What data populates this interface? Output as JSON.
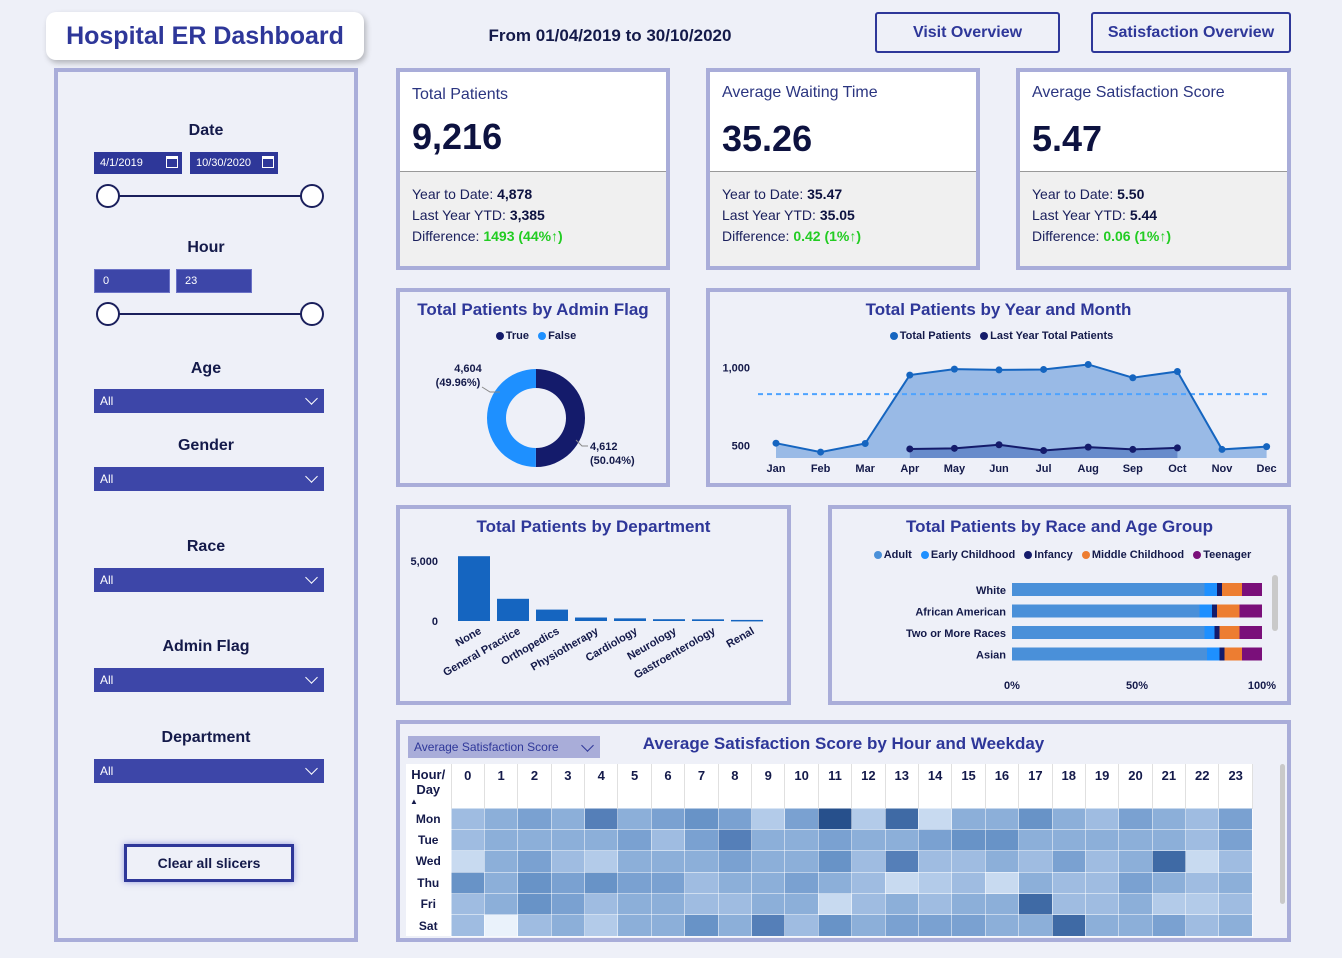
{
  "header": {
    "title": "Hospital ER Dashboard",
    "date_range": "From 01/04/2019 to 30/10/2020",
    "visit_overview_label": "Visit Overview",
    "satisfaction_overview_label": "Satisfaction Overview"
  },
  "sidebar": {
    "date": {
      "label": "Date",
      "start": "4/1/2019",
      "end": "10/30/2020"
    },
    "hour": {
      "label": "Hour",
      "min": "0",
      "max": "23"
    },
    "age": {
      "label": "Age",
      "value": "All"
    },
    "gender": {
      "label": "Gender",
      "value": "All"
    },
    "race": {
      "label": "Race",
      "value": "All"
    },
    "admin_flag": {
      "label": "Admin Flag",
      "value": "All"
    },
    "department": {
      "label": "Department",
      "value": "All"
    },
    "clear_label": "Clear all slicers"
  },
  "kpis": {
    "total_patients": {
      "label": "Total Patients",
      "value": "9,216",
      "ytd_label": "Year to Date:",
      "ytd": "4,878",
      "last_label": "Last Year YTD:",
      "last": "3,385",
      "diff_label": "Difference:",
      "diff": "1493 (44%↑)"
    },
    "avg_wait": {
      "label": "Average Waiting Time",
      "value": "35.26",
      "ytd_label": "Year to Date:",
      "ytd": "35.47",
      "last_label": "Last Year YTD:",
      "last": "35.05",
      "diff_label": "Difference:",
      "diff": "0.42 (1%↑)"
    },
    "avg_sat": {
      "label": "Average Satisfaction Score",
      "value": "5.47",
      "ytd_label": "Year to Date:",
      "ytd": "5.50",
      "last_label": "Last Year YTD:",
      "last": "5.44",
      "diff_label": "Difference:",
      "diff": "0.06 (1%↑)"
    }
  },
  "colors": {
    "accent": "#2e3799",
    "dark_navy": "#141b6b",
    "bright_blue": "#1e90ff",
    "positive": "#22cc22"
  },
  "chart_data": [
    {
      "type": "pie",
      "title": "Total Patients by Admin Flag",
      "legend": [
        "True",
        "False"
      ],
      "slices": [
        {
          "name": "True",
          "value": 4612,
          "label": "4,612",
          "pct": "(50.04%)"
        },
        {
          "name": "False",
          "value": 4604,
          "label": "4,604",
          "pct": "(49.96%)"
        }
      ]
    },
    {
      "type": "area",
      "title": "Total Patients by Year and Month",
      "legend": [
        "Total Patients",
        "Last Year Total Patients"
      ],
      "categories": [
        "Jan",
        "Feb",
        "Mar",
        "Apr",
        "May",
        "Jun",
        "Jul",
        "Aug",
        "Sep",
        "Oct",
        "Nov",
        "Dec"
      ],
      "ylim": [
        420,
        1100
      ],
      "yticks": [
        {
          "value": 1000,
          "label": "1,000"
        },
        {
          "value": 500,
          "label": "500"
        }
      ],
      "average_line": 830,
      "series": [
        {
          "name": "Total Patients",
          "values": [
            515,
            458,
            513,
            952,
            990,
            985,
            988,
            1020,
            935,
            975,
            475,
            493
          ]
        },
        {
          "name": "Last Year Total Patients",
          "values": [
            null,
            null,
            null,
            478,
            482,
            505,
            468,
            490,
            475,
            485,
            null,
            null
          ]
        }
      ]
    },
    {
      "type": "bar",
      "title": "Total Patients by Department",
      "categories": [
        "None",
        "General Practice",
        "Orthopedics",
        "Physiotherapy",
        "Cardiology",
        "Neurology",
        "Gastroenterology",
        "Renal"
      ],
      "values": [
        5400,
        1850,
        950,
        290,
        220,
        150,
        140,
        90
      ],
      "ylim": [
        0,
        6000
      ],
      "yticks": [
        {
          "value": 5000,
          "label": "5,000"
        },
        {
          "value": 0,
          "label": "0"
        }
      ]
    },
    {
      "type": "bar",
      "title": "Total Patients by Race and Age Group",
      "legend": [
        "Adult",
        "Early Childhood",
        "Infancy",
        "Middle Childhood",
        "Teenager"
      ],
      "categories": [
        "White",
        "African American",
        "Two or More Races",
        "Asian"
      ],
      "xticks": [
        "0%",
        "50%",
        "100%"
      ],
      "series": [
        {
          "name": "Adult",
          "values": [
            77,
            75,
            77,
            78
          ]
        },
        {
          "name": "Early Childhood",
          "values": [
            5,
            5,
            4,
            5
          ]
        },
        {
          "name": "Infancy",
          "values": [
            2,
            2,
            2,
            2
          ]
        },
        {
          "name": "Middle Childhood",
          "values": [
            8,
            9,
            8,
            7
          ]
        },
        {
          "name": "Teenager",
          "values": [
            8,
            9,
            9,
            8
          ]
        }
      ]
    },
    {
      "type": "heatmap",
      "title": "Average Satisfaction Score by Hour and Weekday",
      "selector": "Average Satisfaction Score",
      "corner_label": [
        "Hour/",
        "Day"
      ],
      "hours": [
        "0",
        "1",
        "2",
        "3",
        "4",
        "5",
        "6",
        "7",
        "8",
        "9",
        "10",
        "11",
        "12",
        "13",
        "14",
        "15",
        "16",
        "17",
        "18",
        "19",
        "20",
        "21",
        "22",
        "23"
      ],
      "days": [
        "Mon",
        "Tue",
        "Wed",
        "Thu",
        "Fri",
        "Sat"
      ],
      "values": [
        [
          3,
          4,
          5,
          4,
          7,
          4,
          5,
          6,
          5,
          2,
          5,
          9,
          2,
          8,
          1,
          4,
          4,
          6,
          4,
          3,
          5,
          4,
          3,
          5
        ],
        [
          3,
          4,
          4,
          4,
          4,
          5,
          3,
          5,
          7,
          4,
          4,
          5,
          4,
          4,
          5,
          6,
          6,
          4,
          4,
          4,
          4,
          4,
          3,
          5
        ],
        [
          1,
          4,
          5,
          3,
          2,
          4,
          4,
          4,
          5,
          4,
          4,
          6,
          3,
          7,
          3,
          3,
          4,
          3,
          5,
          3,
          4,
          8,
          1,
          3
        ],
        [
          6,
          4,
          6,
          5,
          6,
          5,
          5,
          3,
          4,
          4,
          5,
          4,
          3,
          1,
          2,
          3,
          1,
          4,
          3,
          3,
          5,
          4,
          3,
          4
        ],
        [
          3,
          4,
          6,
          5,
          3,
          4,
          4,
          3,
          3,
          4,
          4,
          1,
          3,
          4,
          3,
          4,
          4,
          8,
          3,
          3,
          4,
          2,
          2,
          3
        ],
        [
          3,
          0,
          3,
          4,
          2,
          4,
          4,
          6,
          4,
          7,
          3,
          6,
          4,
          5,
          5,
          5,
          4,
          4,
          8,
          4,
          4,
          5,
          3,
          4
        ]
      ]
    }
  ]
}
